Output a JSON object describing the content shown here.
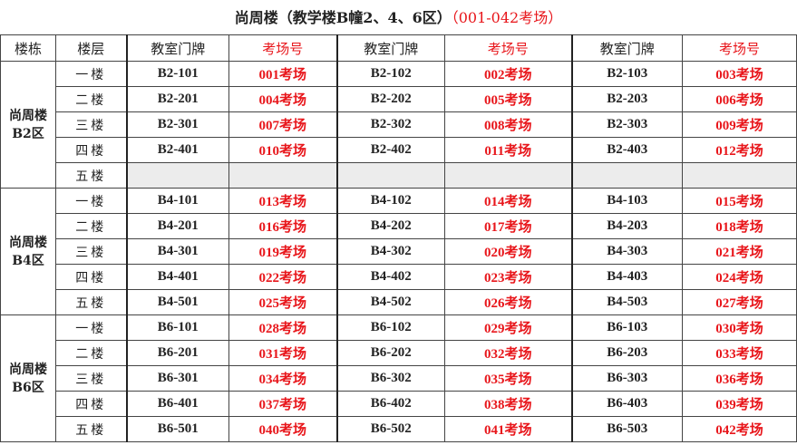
{
  "title": {
    "main": "尚周楼（教学楼B幢2、4、6区）",
    "range": "（001-042考场）"
  },
  "headers": [
    "楼栋",
    "楼层",
    "教室门牌",
    "考场号",
    "教室门牌",
    "考场号",
    "教室门牌",
    "考场号"
  ],
  "groups": [
    {
      "line1": "尚周楼",
      "line2": "B2区",
      "rows": [
        {
          "floor": "一楼",
          "cells": [
            "B2-101",
            "001考场",
            "B2-102",
            "002考场",
            "B2-103",
            "003考场"
          ]
        },
        {
          "floor": "二楼",
          "cells": [
            "B2-201",
            "004考场",
            "B2-202",
            "005考场",
            "B2-203",
            "006考场"
          ]
        },
        {
          "floor": "三楼",
          "cells": [
            "B2-301",
            "007考场",
            "B2-302",
            "008考场",
            "B2-303",
            "009考场"
          ]
        },
        {
          "floor": "四楼",
          "cells": [
            "B2-401",
            "010考场",
            "B2-402",
            "011考场",
            "B2-403",
            "012考场"
          ]
        },
        {
          "floor": "五楼",
          "cells": [
            "",
            "",
            "",
            "",
            "",
            ""
          ]
        }
      ]
    },
    {
      "line1": "尚周楼",
      "line2": "B4区",
      "rows": [
        {
          "floor": "一楼",
          "cells": [
            "B4-101",
            "013考场",
            "B4-102",
            "014考场",
            "B4-103",
            "015考场"
          ]
        },
        {
          "floor": "二楼",
          "cells": [
            "B4-201",
            "016考场",
            "B4-202",
            "017考场",
            "B4-203",
            "018考场"
          ]
        },
        {
          "floor": "三楼",
          "cells": [
            "B4-301",
            "019考场",
            "B4-302",
            "020考场",
            "B4-303",
            "021考场"
          ]
        },
        {
          "floor": "四楼",
          "cells": [
            "B4-401",
            "022考场",
            "B4-402",
            "023考场",
            "B4-403",
            "024考场"
          ]
        },
        {
          "floor": "五楼",
          "cells": [
            "B4-501",
            "025考场",
            "B4-502",
            "026考场",
            "B4-503",
            "027考场"
          ]
        }
      ]
    },
    {
      "line1": "尚周楼",
      "line2": "B6区",
      "rows": [
        {
          "floor": "一楼",
          "cells": [
            "B6-101",
            "028考场",
            "B6-102",
            "029考场",
            "B6-103",
            "030考场"
          ]
        },
        {
          "floor": "二楼",
          "cells": [
            "B6-201",
            "031考场",
            "B6-202",
            "032考场",
            "B6-203",
            "033考场"
          ]
        },
        {
          "floor": "三楼",
          "cells": [
            "B6-301",
            "034考场",
            "B6-302",
            "035考场",
            "B6-303",
            "036考场"
          ]
        },
        {
          "floor": "四楼",
          "cells": [
            "B6-401",
            "037考场",
            "B6-402",
            "038考场",
            "B6-403",
            "039考场"
          ]
        },
        {
          "floor": "五楼",
          "cells": [
            "B6-501",
            "040考场",
            "B6-502",
            "041考场",
            "B6-503",
            "042考场"
          ]
        }
      ]
    }
  ]
}
